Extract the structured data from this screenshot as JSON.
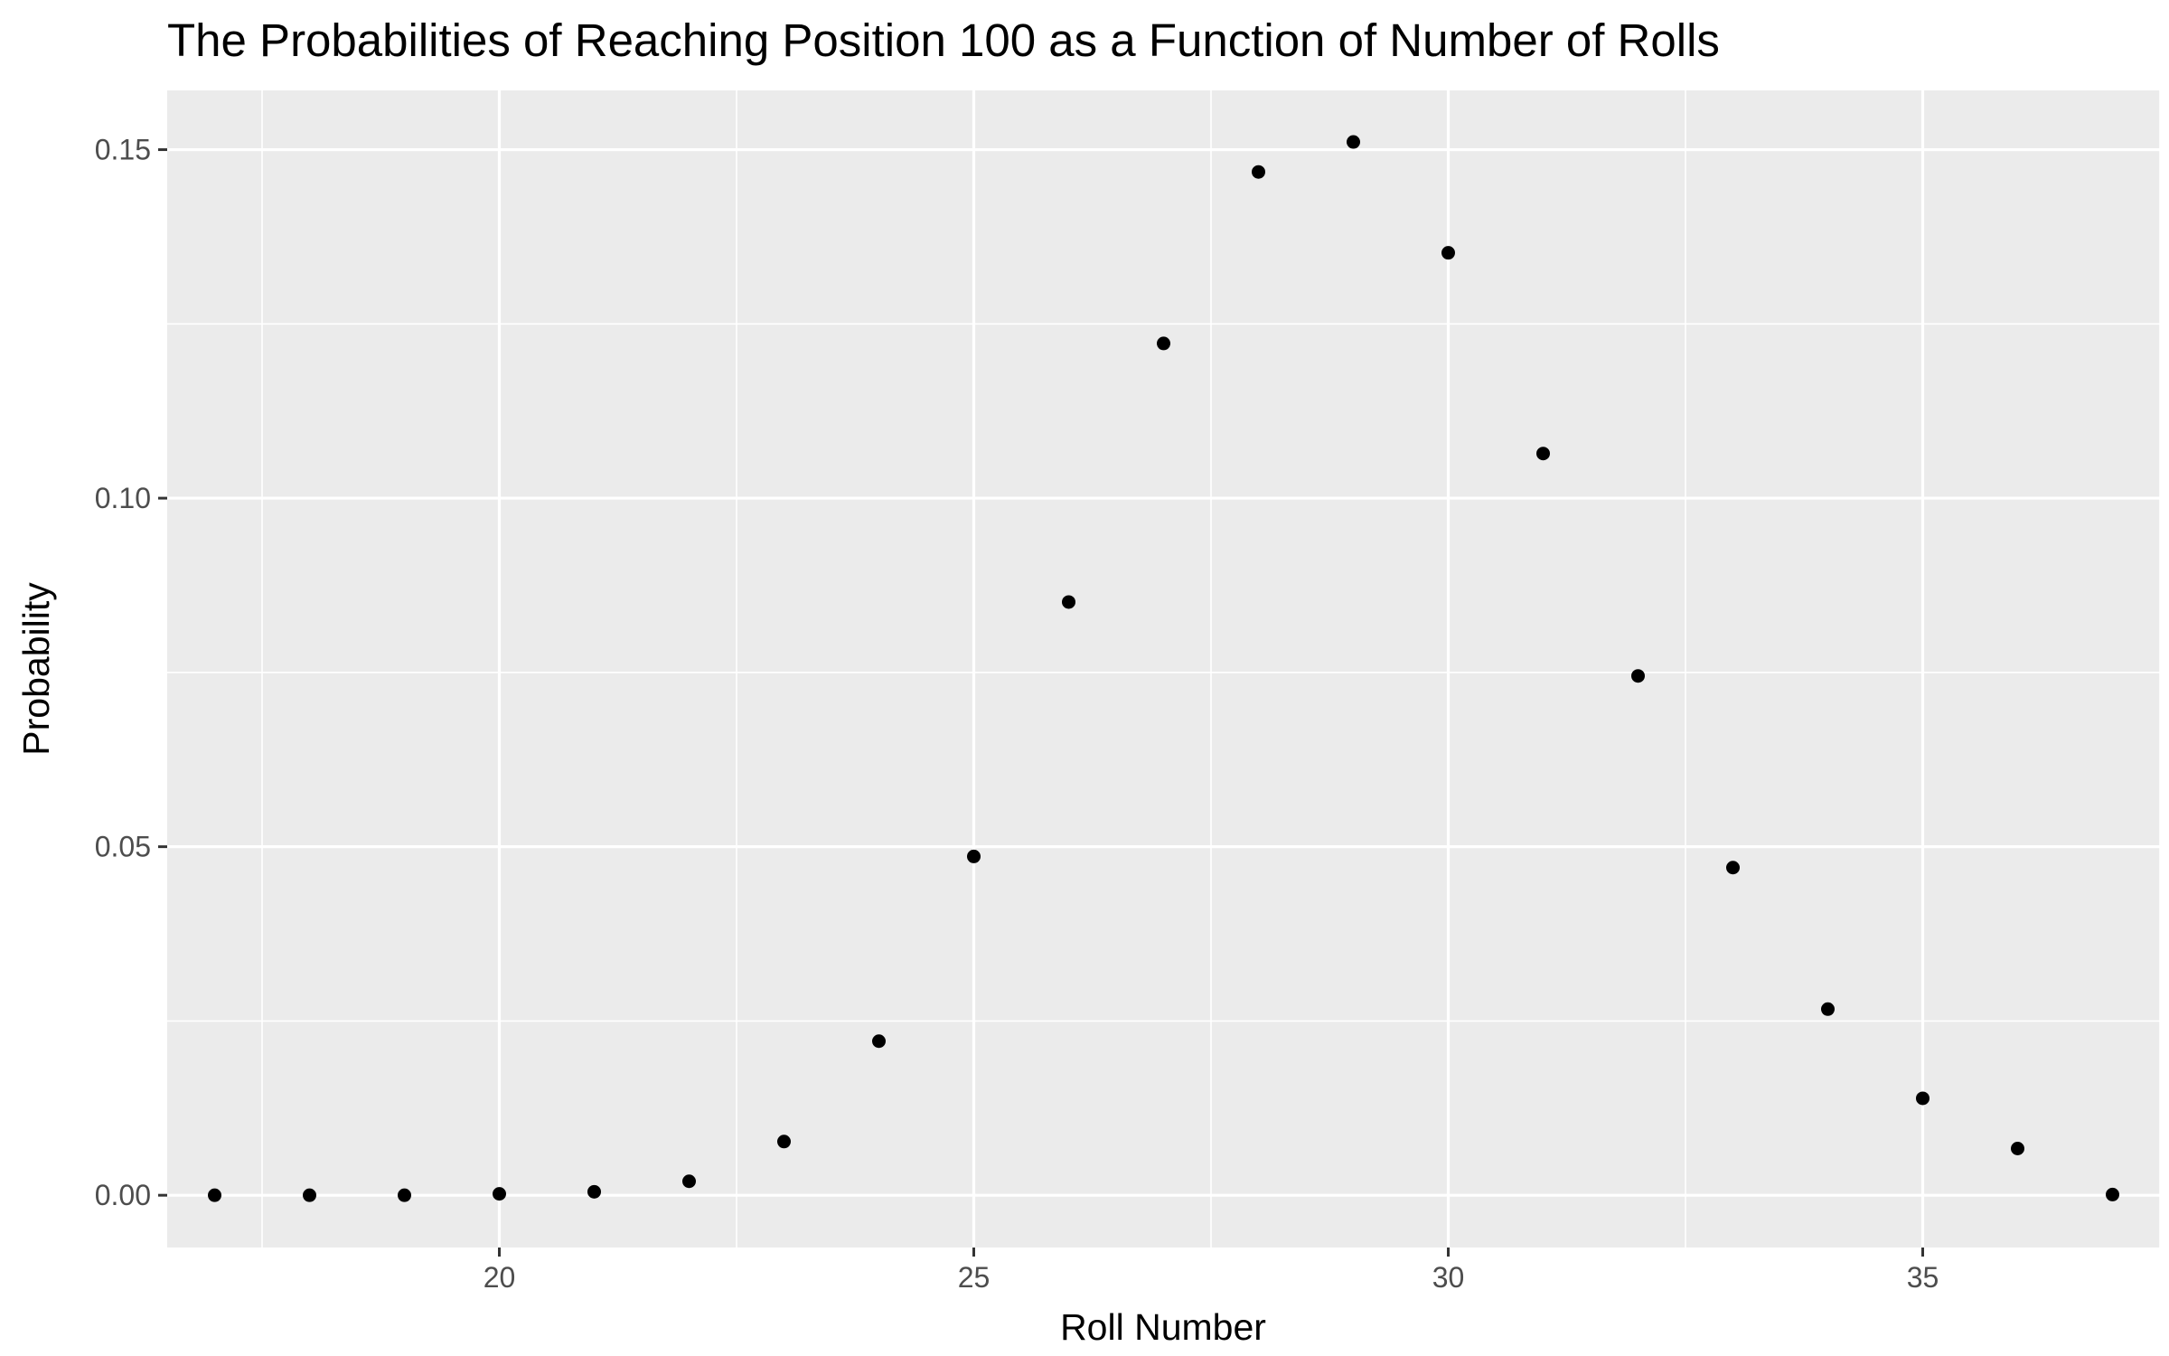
{
  "chart_data": {
    "type": "scatter",
    "title": "The Probabilities of Reaching Position 100 as a Function of Number of Rolls",
    "xlabel": "Roll Number",
    "ylabel": "Probability",
    "xlim": [
      16.5,
      37.5
    ],
    "ylim": [
      -0.0075,
      0.1585
    ],
    "x_major_ticks": [
      20,
      25,
      30,
      35
    ],
    "x_tick_labels": [
      "20",
      "25",
      "30",
      "35"
    ],
    "x_minor_ticks": [
      17.5,
      22.5,
      27.5,
      32.5,
      37.5
    ],
    "y_major_ticks": [
      0.0,
      0.05,
      0.1,
      0.15
    ],
    "y_tick_labels": [
      "0.00",
      "0.05",
      "0.10",
      "0.15"
    ],
    "y_minor_ticks": [
      0.025,
      0.075,
      0.125
    ],
    "grid": true,
    "legend": "none",
    "x": [
      17,
      18,
      19,
      20,
      21,
      22,
      23,
      24,
      25,
      26,
      27,
      28,
      29,
      30,
      31,
      32,
      33,
      34,
      35,
      36,
      37
    ],
    "y": [
      0.0,
      0.0,
      0.0,
      0.0002,
      0.0005,
      0.002,
      0.0077,
      0.0221,
      0.0486,
      0.0851,
      0.1222,
      0.1468,
      0.1511,
      0.1352,
      0.1064,
      0.0745,
      0.047,
      0.0267,
      0.0139,
      0.0067,
      0.0001
    ],
    "colors": {
      "panel": "#ebebeb",
      "grid": "#ffffff",
      "point": "#000000"
    }
  }
}
